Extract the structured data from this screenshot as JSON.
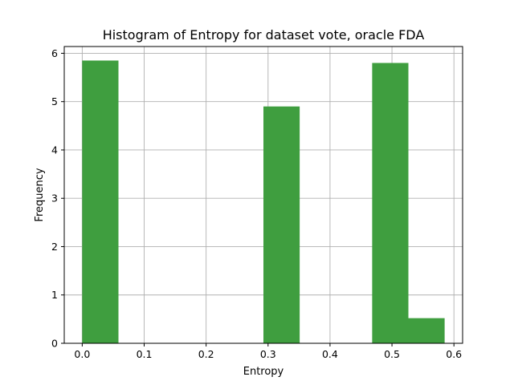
{
  "chart_data": {
    "type": "bar",
    "title": "Histogram of Entropy for dataset vote, oracle FDA",
    "xlabel": "Entropy",
    "ylabel": "Frequency",
    "xlim": [
      -0.029,
      0.614
    ],
    "ylim": [
      0,
      6.14
    ],
    "xticks": [
      {
        "value": 0.0,
        "label": "0.0"
      },
      {
        "value": 0.1,
        "label": "0.1"
      },
      {
        "value": 0.2,
        "label": "0.2"
      },
      {
        "value": 0.3,
        "label": "0.3"
      },
      {
        "value": 0.4,
        "label": "0.4"
      },
      {
        "value": 0.5,
        "label": "0.5"
      },
      {
        "value": 0.6,
        "label": "0.6"
      }
    ],
    "yticks": [
      {
        "value": 0,
        "label": "0"
      },
      {
        "value": 1,
        "label": "1"
      },
      {
        "value": 2,
        "label": "2"
      },
      {
        "value": 3,
        "label": "3"
      },
      {
        "value": 4,
        "label": "4"
      },
      {
        "value": 5,
        "label": "5"
      },
      {
        "value": 6,
        "label": "6"
      }
    ],
    "grid": true,
    "bar_color": "#3f9e3f",
    "bars": [
      {
        "x0": 0.0,
        "x1": 0.0585,
        "value": 5.85
      },
      {
        "x0": 0.2925,
        "x1": 0.351,
        "value": 4.9
      },
      {
        "x0": 0.468,
        "x1": 0.5265,
        "value": 5.8
      },
      {
        "x0": 0.5265,
        "x1": 0.585,
        "value": 0.52
      }
    ]
  }
}
